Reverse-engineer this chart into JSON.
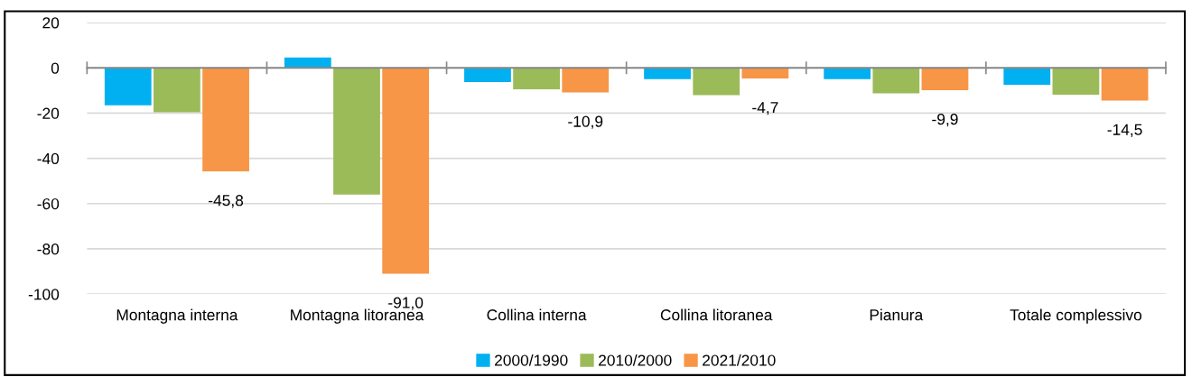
{
  "chart_data": {
    "type": "bar",
    "categories": [
      "Montagna interna",
      "Montagna litoranea",
      "Collina interna",
      "Collina litoranea",
      "Pianura",
      "Totale complessivo"
    ],
    "series": [
      {
        "name": "2000/1990",
        "color": "#00b0f0",
        "values": [
          -16.6,
          4.6,
          -6.3,
          -5.0,
          -5.0,
          -7.5
        ]
      },
      {
        "name": "2010/2000",
        "color": "#9bbb59",
        "values": [
          -19.6,
          -56.0,
          -9.5,
          -12.1,
          -11.3,
          -11.9
        ]
      },
      {
        "name": "2021/2010",
        "color": "#f79646",
        "values": [
          -45.8,
          -91.0,
          -10.9,
          -4.7,
          -9.9,
          -14.5
        ],
        "value_labels": [
          "-45,8",
          "-91,0",
          "-10,9",
          "-4,7",
          "-9,9",
          "-14,5"
        ]
      }
    ],
    "ylim": [
      -100,
      20
    ],
    "yticks": [
      -100,
      -80,
      -60,
      -40,
      -20,
      0,
      20
    ],
    "grid": "y",
    "legend": "bottom"
  }
}
